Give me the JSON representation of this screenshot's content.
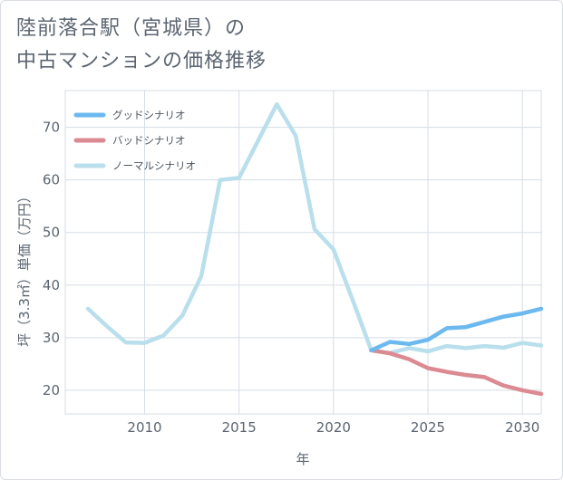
{
  "title_line1": "陸前落合駅（宮城県）の",
  "title_line2": "中古マンションの価格推移",
  "chart_data": {
    "type": "line",
    "title": "陸前落合駅（宮城県）の中古マンションの価格推移",
    "xlabel": "年",
    "ylabel": "坪（3.3㎡）単価（万円）",
    "xlim": [
      2005.8,
      2031
    ],
    "ylim": [
      15.5,
      77
    ],
    "xticks": [
      2010,
      2015,
      2020,
      2025,
      2030
    ],
    "yticks": [
      20,
      30,
      40,
      50,
      60,
      70
    ],
    "legend_position": "top-left",
    "series": [
      {
        "name": "グッドシナリオ",
        "color": "#6cb9ef",
        "x": [
          2022,
          2023,
          2024,
          2025,
          2026,
          2027,
          2028,
          2029,
          2030,
          2031
        ],
        "values": [
          27.6,
          29.2,
          28.8,
          29.6,
          31.8,
          32.0,
          33.0,
          34.0,
          34.6,
          35.5
        ]
      },
      {
        "name": "バッドシナリオ",
        "color": "#db8a92",
        "x": [
          2022,
          2023,
          2024,
          2025,
          2026,
          2027,
          2028,
          2029,
          2030,
          2031
        ],
        "values": [
          27.6,
          27.0,
          25.9,
          24.2,
          23.5,
          22.9,
          22.5,
          20.9,
          20.0,
          19.3
        ]
      },
      {
        "name": "ノーマルシナリオ",
        "color": "#b9dfec",
        "x": [
          2007,
          2008,
          2009,
          2010,
          2011,
          2012,
          2013,
          2014,
          2015,
          2016,
          2017,
          2018,
          2019,
          2020,
          2021,
          2022,
          2023,
          2024,
          2025,
          2026,
          2027,
          2028,
          2029,
          2030,
          2031
        ],
        "values": [
          35.5,
          32.2,
          29.1,
          29.0,
          30.4,
          34.2,
          41.7,
          60.0,
          60.4,
          67.4,
          74.4,
          68.4,
          50.6,
          46.8,
          37.3,
          27.6,
          27.1,
          28.0,
          27.4,
          28.4,
          28.0,
          28.4,
          28.1,
          29.0,
          28.5
        ]
      }
    ]
  }
}
